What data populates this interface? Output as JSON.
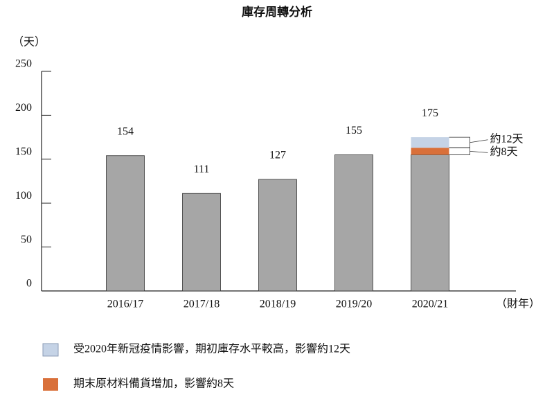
{
  "chart_data": {
    "type": "stacked_bar",
    "title": "庫存周轉分析",
    "y_label": "（天）",
    "x_label": "（財年）",
    "categories": [
      "2016/17",
      "2017/18",
      "2018/19",
      "2019/20",
      "2020/21"
    ],
    "totals": [
      154,
      111,
      127,
      155,
      175
    ],
    "series": [
      {
        "color": "#a6a6a6",
        "values": [
          154,
          111,
          127,
          155,
          155
        ]
      },
      {
        "name": "期末原材料備貨增加，影響約8天",
        "color": "#d9703a",
        "values": [
          null,
          null,
          null,
          null,
          8
        ],
        "value_labels": [
          null,
          null,
          null,
          null,
          "約8天"
        ]
      },
      {
        "name": "受2020年新冠疫情影響，期初庫存水平較高，影響約12天",
        "color": "#c5d3e6",
        "values": [
          null,
          null,
          null,
          null,
          12
        ],
        "value_labels": [
          null,
          null,
          null,
          null,
          "約12天"
        ]
      }
    ],
    "ylim": [
      0,
      250
    ],
    "yticks": [
      0,
      50,
      100,
      150,
      200,
      250
    ]
  }
}
